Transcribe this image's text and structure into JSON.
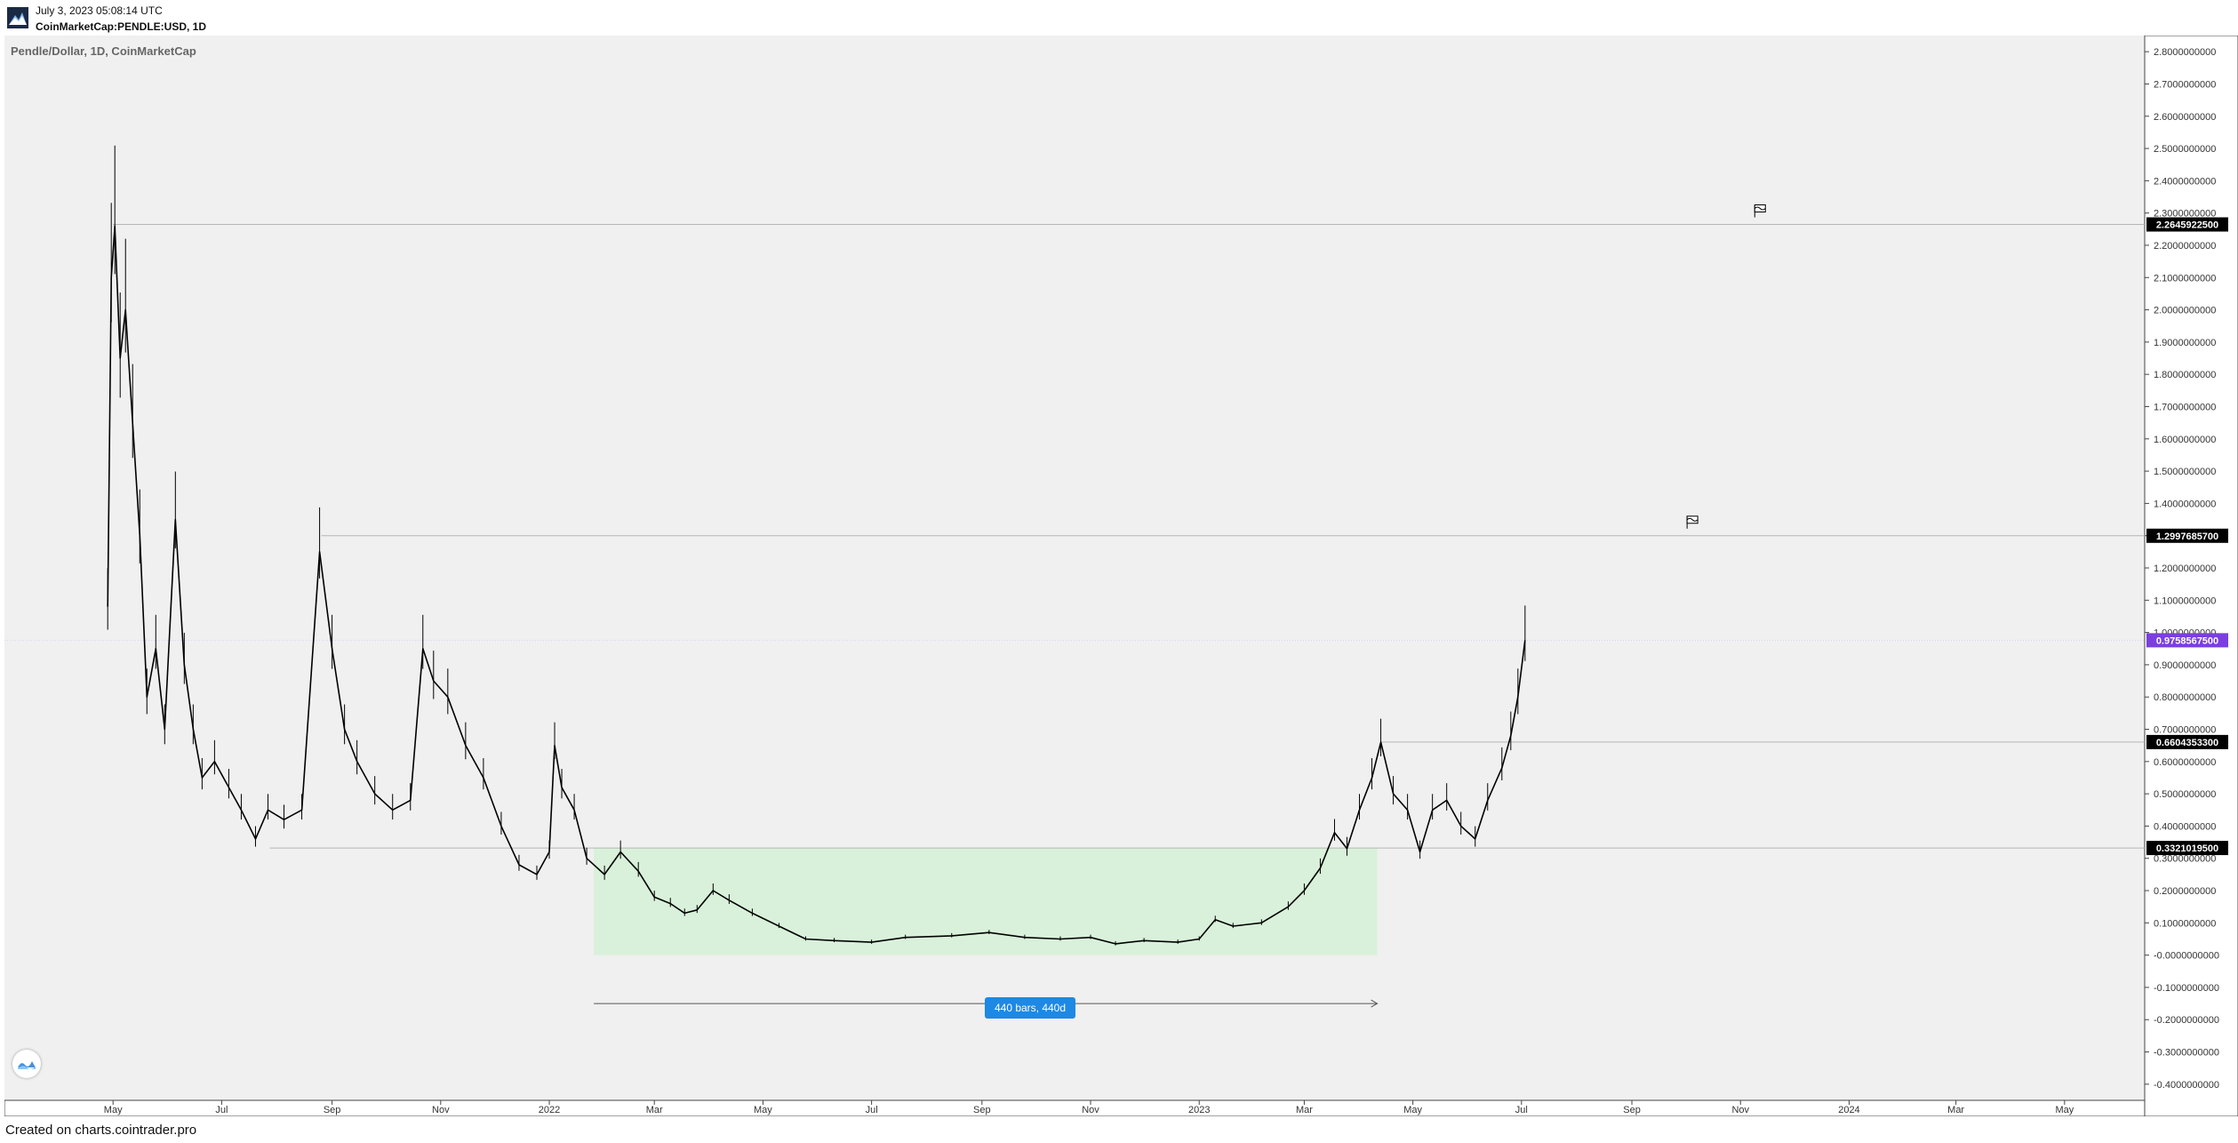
{
  "header": {
    "date": "July 3, 2023 05:08:14 UTC",
    "symbol": "CoinMarketCap:PENDLE:USD, 1D"
  },
  "footer": {
    "text": "Created on charts.cointrader.pro"
  },
  "colors": {
    "plot_bg": "#f0f0f0",
    "candle": "#000000",
    "range_fill": "#d9f1da",
    "level_line": "#b5b5b5",
    "level_label_bg": "#000000",
    "current_label_bg": "#7b3fe0",
    "measure_bg": "#1e88e5"
  },
  "chart_data": {
    "type": "candlestick",
    "title": "Pendle/Dollar, 1D, CoinMarketCap",
    "interval": "1D",
    "x_ticks": [
      "May",
      "Jul",
      "Sep",
      "Nov",
      "2022",
      "Mar",
      "May",
      "Jul",
      "Sep",
      "Nov",
      "2023",
      "Mar",
      "May",
      "Jul",
      "Sep",
      "Nov",
      "2024",
      "Mar",
      "May"
    ],
    "y_ticks": [
      "2.8000000000",
      "2.7000000000",
      "2.6000000000",
      "2.5000000000",
      "2.4000000000",
      "2.3000000000",
      "2.2000000000",
      "2.1000000000",
      "2.0000000000",
      "1.9000000000",
      "1.8000000000",
      "1.7000000000",
      "1.6000000000",
      "1.5000000000",
      "1.4000000000",
      "1.3000000000",
      "1.2000000000",
      "1.1000000000",
      "1.0000000000",
      "0.9000000000",
      "0.8000000000",
      "0.7000000000",
      "0.6000000000",
      "0.5000000000",
      "0.4000000000",
      "0.3000000000",
      "0.2000000000",
      "0.1000000000",
      "-0.0000000000",
      "-0.1000000000",
      "-0.2000000000",
      "-0.3000000000",
      "-0.4000000000"
    ],
    "ylim": [
      -0.45,
      2.85
    ],
    "xlim": [
      "2021-03-01",
      "2024-06-15"
    ],
    "series": [
      {
        "name": "",
        "points": [
          [
            "2021-04-28",
            1.08
          ],
          [
            "2021-04-30",
            2.1
          ],
          [
            "2021-05-02",
            2.26
          ],
          [
            "2021-05-05",
            1.85
          ],
          [
            "2021-05-08",
            2.0
          ],
          [
            "2021-05-12",
            1.65
          ],
          [
            "2021-05-16",
            1.3
          ],
          [
            "2021-05-20",
            0.8
          ],
          [
            "2021-05-25",
            0.95
          ],
          [
            "2021-05-30",
            0.7
          ],
          [
            "2021-06-05",
            1.35
          ],
          [
            "2021-06-10",
            0.9
          ],
          [
            "2021-06-15",
            0.7
          ],
          [
            "2021-06-20",
            0.55
          ],
          [
            "2021-06-27",
            0.6
          ],
          [
            "2021-07-05",
            0.52
          ],
          [
            "2021-07-12",
            0.45
          ],
          [
            "2021-07-20",
            0.36
          ],
          [
            "2021-07-27",
            0.45
          ],
          [
            "2021-08-05",
            0.42
          ],
          [
            "2021-08-15",
            0.45
          ],
          [
            "2021-08-25",
            1.25
          ],
          [
            "2021-09-01",
            0.95
          ],
          [
            "2021-09-08",
            0.7
          ],
          [
            "2021-09-15",
            0.6
          ],
          [
            "2021-09-25",
            0.5
          ],
          [
            "2021-10-05",
            0.45
          ],
          [
            "2021-10-15",
            0.48
          ],
          [
            "2021-10-22",
            0.95
          ],
          [
            "2021-10-28",
            0.85
          ],
          [
            "2021-11-05",
            0.8
          ],
          [
            "2021-11-15",
            0.65
          ],
          [
            "2021-11-25",
            0.55
          ],
          [
            "2021-12-05",
            0.4
          ],
          [
            "2021-12-15",
            0.28
          ],
          [
            "2021-12-25",
            0.25
          ],
          [
            "2022-01-01",
            0.32
          ],
          [
            "2022-01-04",
            0.65
          ],
          [
            "2022-01-08",
            0.52
          ],
          [
            "2022-01-15",
            0.45
          ],
          [
            "2022-01-22",
            0.3
          ],
          [
            "2022-02-01",
            0.25
          ],
          [
            "2022-02-10",
            0.32
          ],
          [
            "2022-02-20",
            0.26
          ],
          [
            "2022-03-01",
            0.18
          ],
          [
            "2022-03-10",
            0.16
          ],
          [
            "2022-03-18",
            0.13
          ],
          [
            "2022-03-25",
            0.14
          ],
          [
            "2022-04-03",
            0.2
          ],
          [
            "2022-04-12",
            0.17
          ],
          [
            "2022-04-25",
            0.13
          ],
          [
            "2022-05-10",
            0.09
          ],
          [
            "2022-05-25",
            0.05
          ],
          [
            "2022-06-10",
            0.045
          ],
          [
            "2022-07-01",
            0.04
          ],
          [
            "2022-07-20",
            0.055
          ],
          [
            "2022-08-15",
            0.06
          ],
          [
            "2022-09-05",
            0.07
          ],
          [
            "2022-09-25",
            0.055
          ],
          [
            "2022-10-15",
            0.05
          ],
          [
            "2022-11-01",
            0.055
          ],
          [
            "2022-11-15",
            0.035
          ],
          [
            "2022-12-01",
            0.045
          ],
          [
            "2022-12-20",
            0.04
          ],
          [
            "2023-01-01",
            0.05
          ],
          [
            "2023-01-10",
            0.11
          ],
          [
            "2023-01-20",
            0.09
          ],
          [
            "2023-02-05",
            0.1
          ],
          [
            "2023-02-20",
            0.15
          ],
          [
            "2023-03-01",
            0.2
          ],
          [
            "2023-03-10",
            0.27
          ],
          [
            "2023-03-18",
            0.38
          ],
          [
            "2023-03-25",
            0.33
          ],
          [
            "2023-04-01",
            0.45
          ],
          [
            "2023-04-08",
            0.55
          ],
          [
            "2023-04-13",
            0.66
          ],
          [
            "2023-04-20",
            0.5
          ],
          [
            "2023-04-28",
            0.45
          ],
          [
            "2023-05-05",
            0.32
          ],
          [
            "2023-05-12",
            0.45
          ],
          [
            "2023-05-20",
            0.48
          ],
          [
            "2023-05-28",
            0.4
          ],
          [
            "2023-06-05",
            0.36
          ],
          [
            "2023-06-12",
            0.48
          ],
          [
            "2023-06-20",
            0.58
          ],
          [
            "2023-06-25",
            0.68
          ],
          [
            "2023-06-29",
            0.8
          ],
          [
            "2023-07-03",
            0.976
          ]
        ]
      }
    ],
    "horizontal_levels": [
      {
        "value": 2.26459225,
        "label": "2.2645922500",
        "from": "2021-05-01"
      },
      {
        "value": 1.29976857,
        "label": "1.2997685700",
        "from": "2021-08-26"
      },
      {
        "value": 0.66043533,
        "label": "0.6604353300",
        "from": "2023-04-13"
      },
      {
        "value": 0.33210195,
        "label": "0.3321019500",
        "from": "2021-07-28"
      }
    ],
    "current_price": {
      "value": 0.97585675,
      "label": "0.9758567500"
    },
    "flags": [
      {
        "date": "2023-11-09",
        "value": 2.26459225
      },
      {
        "date": "2023-10-02",
        "value": 1.29976857
      }
    ],
    "range_box": {
      "from": "2022-01-26",
      "to": "2023-04-11",
      "low": 0.0,
      "high": 0.33210195
    },
    "measure": {
      "from": "2022-01-26",
      "to": "2023-04-11",
      "label": "440 bars, 440d"
    }
  }
}
